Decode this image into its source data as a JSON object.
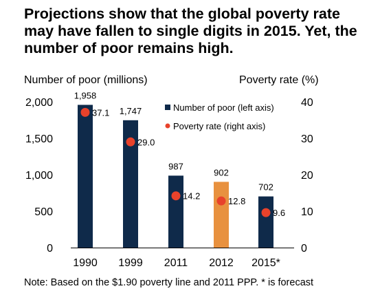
{
  "title": "Projections show that the global poverty rate may have fallen to single digits in 2015. Yet, the number of poor remains high.",
  "note": "Note: Based on the $1.90 poverty line and 2011 PPP. * is forecast",
  "colors": {
    "bar": "#0f2a4a",
    "bar_forecast": "#e8913f",
    "dot": "#e8422b"
  },
  "chart_data": {
    "type": "bar",
    "categories": [
      "1990",
      "1999",
      "2011",
      "2012",
      "2015*"
    ],
    "series": [
      {
        "name": "Number of poor (left axis)",
        "axis": "left",
        "type": "bar",
        "values": [
          1958,
          1747,
          987,
          902,
          702
        ],
        "labels": [
          "1,958",
          "1,747",
          "987",
          "902",
          "702"
        ]
      },
      {
        "name": "Poverty rate (right axis)",
        "axis": "right",
        "type": "scatter",
        "values": [
          37.1,
          29.0,
          14.2,
          12.8,
          9.6
        ],
        "labels": [
          "37.1",
          "29.0",
          "14.2",
          "12.8",
          "9.6"
        ]
      }
    ],
    "highlight_category": "2012",
    "ylabel_left": "Number of poor (millions)",
    "ylabel_right": "Poverty rate (%)",
    "ylim_left": [
      0,
      2000
    ],
    "ylim_right": [
      0,
      40
    ],
    "yticks_left": [
      "0",
      "500",
      "1,000",
      "1,500",
      "2,000"
    ],
    "yticks_right": [
      "0",
      "10",
      "20",
      "30",
      "40"
    ],
    "legend_position": "top-right",
    "grid": false
  }
}
